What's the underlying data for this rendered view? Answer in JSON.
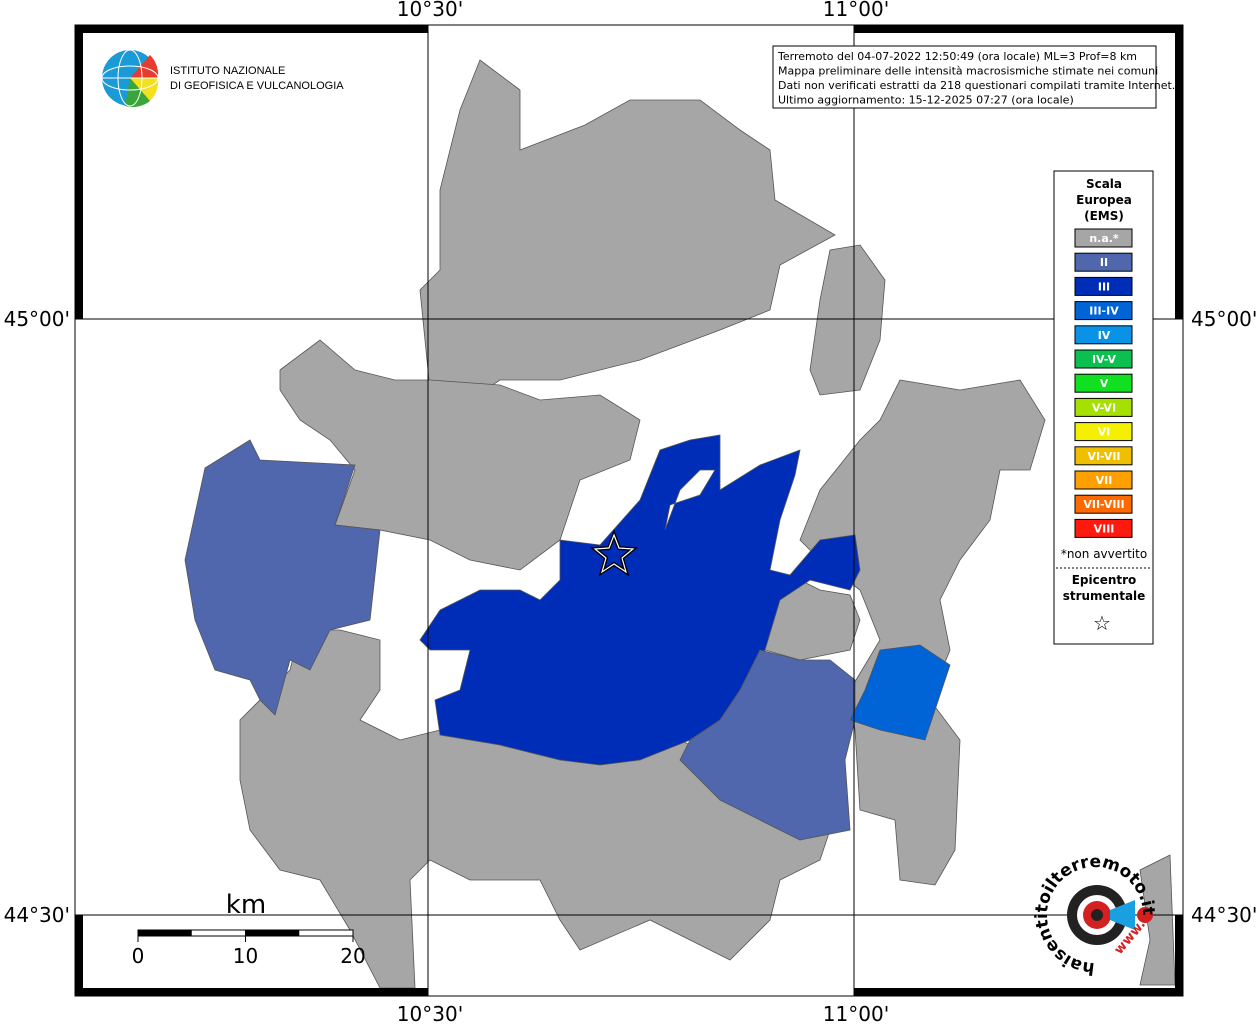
{
  "logo": {
    "line1": "ISTITUTO NAZIONALE",
    "line2": "DI GEOFISICA E VULCANOLOGIA"
  },
  "info": {
    "lines": [
      "Terremoto del 04-07-2022 12:50:49 (ora locale) ML=3 Prof=8 km",
      "Mappa preliminare delle intensità macrosismiche stimate nei comuni",
      "Dati non verificati estratti da 218 questionari compilati tramite Internet.",
      "Ultimo aggiornamento: 15-12-2025 07:27 (ora locale)"
    ]
  },
  "axes": {
    "top": [
      "10°30'",
      "11°00'"
    ],
    "bottom": [
      "10°30'",
      "11°00'"
    ],
    "left": [
      "45°00'",
      "44°30'"
    ],
    "right": [
      "45°00'",
      "44°30'"
    ]
  },
  "legend": {
    "title": [
      "Scala",
      "Europea",
      "(EMS)"
    ],
    "classes": [
      {
        "label": "n.a.*",
        "color": "#a6a6a6"
      },
      {
        "label": "II",
        "color": "#5066ad"
      },
      {
        "label": "III",
        "color": "#002db8"
      },
      {
        "label": "III-IV",
        "color": "#0063d6"
      },
      {
        "label": "IV",
        "color": "#0a92e6"
      },
      {
        "label": "IV-V",
        "color": "#0cc050"
      },
      {
        "label": "V",
        "color": "#10e020"
      },
      {
        "label": "V-VI",
        "color": "#a6e000"
      },
      {
        "label": "VI",
        "color": "#f5f000"
      },
      {
        "label": "VI-VII",
        "color": "#f0c000"
      },
      {
        "label": "VII",
        "color": "#ffa000"
      },
      {
        "label": "VII-VIII",
        "color": "#ff6a00"
      },
      {
        "label": "VIII",
        "color": "#ff1a10"
      }
    ],
    "note": "*non avvertito",
    "epicenter": [
      "Epicentro",
      "strumentale"
    ],
    "epicenter_symbol": "☆"
  },
  "scale_bar": {
    "unit": "km",
    "ticks": [
      0,
      10,
      20
    ]
  },
  "watermark": {
    "text": "haisentitoilterremoto.it",
    "prefix": "www."
  }
}
